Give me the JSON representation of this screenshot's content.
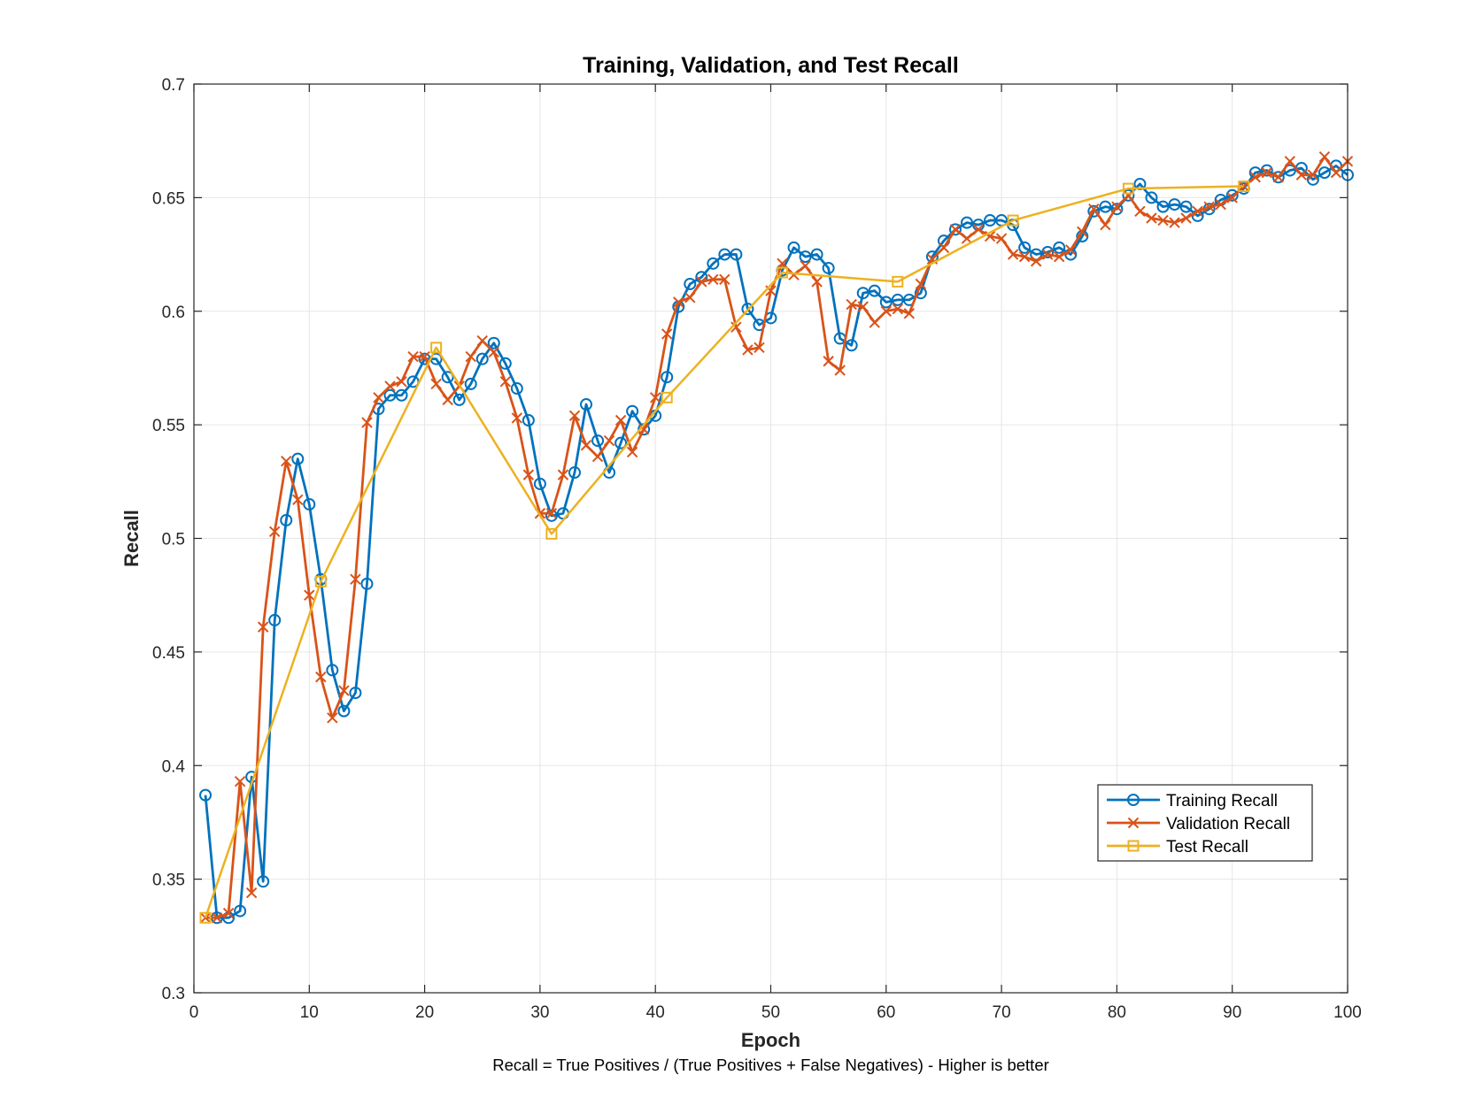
{
  "chart_data": {
    "type": "line",
    "title": "Training, Validation, and Test Recall",
    "xlabel": "Epoch",
    "ylabel": "Recall",
    "note": "Recall = True Positives / (True Positives + False Negatives) - Higher is better",
    "xlim": [
      0,
      100
    ],
    "ylim": [
      0.3,
      0.7
    ],
    "x_ticks": [
      "0",
      "10",
      "20",
      "30",
      "40",
      "50",
      "60",
      "70",
      "80",
      "90",
      "100"
    ],
    "y_ticks": [
      "0.3",
      "0.35",
      "0.4",
      "0.45",
      "0.5",
      "0.55",
      "0.6",
      "0.65",
      "0.7"
    ],
    "grid": true,
    "legend_position": "bottom-right",
    "series": [
      {
        "name": "Training Recall",
        "color": "#0072BD",
        "marker": "circle",
        "x": [
          1,
          2,
          3,
          4,
          5,
          6,
          7,
          8,
          9,
          10,
          11,
          12,
          13,
          14,
          15,
          16,
          17,
          18,
          19,
          20,
          21,
          22,
          23,
          24,
          25,
          26,
          27,
          28,
          29,
          30,
          31,
          32,
          33,
          34,
          35,
          36,
          37,
          38,
          39,
          40,
          41,
          42,
          43,
          44,
          45,
          46,
          47,
          48,
          49,
          50,
          51,
          52,
          53,
          54,
          55,
          56,
          57,
          58,
          59,
          60,
          61,
          62,
          63,
          64,
          65,
          66,
          67,
          68,
          69,
          70,
          71,
          72,
          73,
          74,
          75,
          76,
          77,
          78,
          79,
          80,
          81,
          82,
          83,
          84,
          85,
          86,
          87,
          88,
          89,
          90,
          91,
          92,
          93,
          94,
          95,
          96,
          97,
          98,
          99,
          100
        ],
        "values": [
          0.387,
          0.333,
          0.333,
          0.336,
          0.395,
          0.349,
          0.464,
          0.508,
          0.535,
          0.515,
          0.482,
          0.442,
          0.424,
          0.432,
          0.48,
          0.557,
          0.563,
          0.563,
          0.569,
          0.579,
          0.579,
          0.571,
          0.561,
          0.568,
          0.579,
          0.586,
          0.577,
          0.566,
          0.552,
          0.524,
          0.51,
          0.511,
          0.529,
          0.559,
          0.543,
          0.529,
          0.542,
          0.556,
          0.548,
          0.554,
          0.571,
          0.602,
          0.612,
          0.615,
          0.621,
          0.625,
          0.625,
          0.601,
          0.594,
          0.597,
          0.618,
          0.628,
          0.624,
          0.625,
          0.619,
          0.588,
          0.585,
          0.608,
          0.609,
          0.604,
          0.605,
          0.605,
          0.608,
          0.624,
          0.631,
          0.636,
          0.639,
          0.638,
          0.64,
          0.64,
          0.638,
          0.628,
          0.625,
          0.626,
          0.628,
          0.625,
          0.633,
          0.644,
          0.646,
          0.645,
          0.651,
          0.656,
          0.65,
          0.646,
          0.647,
          0.646,
          0.642,
          0.645,
          0.649,
          0.651,
          0.654,
          0.661,
          0.662,
          0.659,
          0.662,
          0.663,
          0.658,
          0.661,
          0.664,
          0.66
        ]
      },
      {
        "name": "Validation Recall",
        "color": "#D95319",
        "marker": "x",
        "x": [
          1,
          2,
          3,
          4,
          5,
          6,
          7,
          8,
          9,
          10,
          11,
          12,
          13,
          14,
          15,
          16,
          17,
          18,
          19,
          20,
          21,
          22,
          23,
          24,
          25,
          26,
          27,
          28,
          29,
          30,
          31,
          32,
          33,
          34,
          35,
          36,
          37,
          38,
          39,
          40,
          41,
          42,
          43,
          44,
          45,
          46,
          47,
          48,
          49,
          50,
          51,
          52,
          53,
          54,
          55,
          56,
          57,
          58,
          59,
          60,
          61,
          62,
          63,
          64,
          65,
          66,
          67,
          68,
          69,
          70,
          71,
          72,
          73,
          74,
          75,
          76,
          77,
          78,
          79,
          80,
          81,
          82,
          83,
          84,
          85,
          86,
          87,
          88,
          89,
          90,
          91,
          92,
          93,
          94,
          95,
          96,
          97,
          98,
          99,
          100
        ],
        "values": [
          0.333,
          0.333,
          0.335,
          0.393,
          0.344,
          0.461,
          0.503,
          0.534,
          0.517,
          0.475,
          0.439,
          0.421,
          0.433,
          0.482,
          0.551,
          0.562,
          0.567,
          0.569,
          0.58,
          0.58,
          0.568,
          0.561,
          0.567,
          0.58,
          0.587,
          0.582,
          0.569,
          0.553,
          0.528,
          0.511,
          0.511,
          0.528,
          0.554,
          0.541,
          0.536,
          0.543,
          0.552,
          0.538,
          0.548,
          0.562,
          0.59,
          0.604,
          0.606,
          0.613,
          0.614,
          0.614,
          0.593,
          0.583,
          0.584,
          0.609,
          0.621,
          0.616,
          0.62,
          0.613,
          0.578,
          0.574,
          0.603,
          0.602,
          0.595,
          0.6,
          0.601,
          0.599,
          0.612,
          0.623,
          0.628,
          0.636,
          0.632,
          0.636,
          0.633,
          0.632,
          0.625,
          0.624,
          0.622,
          0.625,
          0.624,
          0.627,
          0.635,
          0.645,
          0.638,
          0.646,
          0.651,
          0.644,
          0.641,
          0.64,
          0.639,
          0.641,
          0.644,
          0.646,
          0.647,
          0.65,
          0.655,
          0.659,
          0.661,
          0.659,
          0.666,
          0.66,
          0.66,
          0.668,
          0.661,
          0.666
        ]
      },
      {
        "name": "Test Recall",
        "color": "#EDB120",
        "marker": "square",
        "x": [
          1,
          11,
          21,
          31,
          41,
          51,
          61,
          71,
          81,
          91
        ],
        "values": [
          0.333,
          0.481,
          0.584,
          0.502,
          0.562,
          0.617,
          0.613,
          0.64,
          0.654,
          0.655
        ]
      }
    ]
  }
}
